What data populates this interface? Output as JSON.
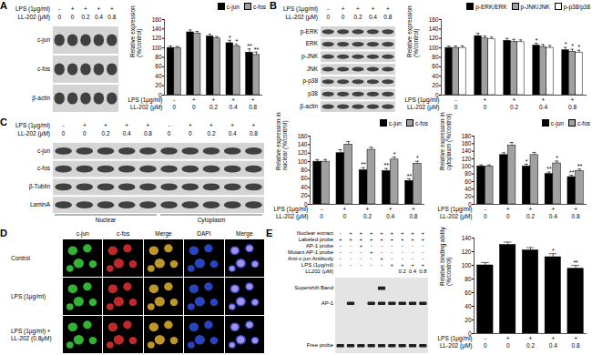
{
  "panels": [
    {
      "label": "A",
      "blot": {
        "treatments": [
          {
            "label": "LPS (1μg/ml)",
            "values": [
              "-",
              "+",
              "+",
              "+",
              "+"
            ]
          },
          {
            "label": "LL-202 (μM)",
            "values": [
              "0",
              "0",
              "0.2",
              "0.4",
              "0.8"
            ]
          }
        ],
        "rows": [
          "c-jun",
          "c-fos",
          "β-actin"
        ]
      }
    },
    {
      "label": "B",
      "blot": {
        "treatments": [
          {
            "label": "LPS (1μg/ml)",
            "values": [
              "-",
              "+",
              "+",
              "+",
              "+"
            ]
          },
          {
            "label": "LL-202 (μM)",
            "values": [
              "0",
              "0",
              "0.2",
              "0.4",
              "0.8"
            ]
          }
        ],
        "rows": [
          "p-ERK",
          "ERK",
          "p-JNK",
          "JNK",
          "p-p38",
          "p38",
          "β-actin"
        ]
      }
    },
    {
      "label": "C",
      "blot": {
        "treatments": [
          {
            "label": "LPS (1μg/ml)",
            "values": [
              "-",
              "+",
              "+",
              "+",
              "+",
              "-",
              "+",
              "+",
              "+",
              "+"
            ]
          },
          {
            "label": "LL-202 (μM)",
            "values": [
              "0",
              "0",
              "0.2",
              "0.4",
              "0.8",
              "0",
              "0",
              "0.2",
              "0.4",
              "0.8"
            ]
          }
        ],
        "rows": [
          "c-jun",
          "c-fos",
          "β-Tublin",
          "LaminA"
        ],
        "groups": [
          "Nuclear",
          "Cytoplasm"
        ]
      }
    },
    {
      "label": "D",
      "images": {
        "columns": [
          "c-jun",
          "c-fos",
          "Merge",
          "DAPI",
          "Merge"
        ],
        "rows": [
          "Control",
          "LPS (1μg/ml)",
          "LPS (1μg/ml) + LL-202 (0.8μM)"
        ]
      }
    },
    {
      "label": "E",
      "gel": {
        "treatments": [
          {
            "label": "Nuclear extract",
            "values": [
              "-",
              "+",
              "+",
              "+",
              "+",
              "+",
              "+",
              "+",
              "+"
            ]
          },
          {
            "label": "Labeled probe",
            "values": [
              "+",
              "+",
              "+",
              "+",
              "+",
              "+",
              "+",
              "+",
              "+"
            ]
          },
          {
            "label": "AP-1 probe",
            "values": [
              "-",
              "-",
              "+",
              "-",
              "-",
              "-",
              "-",
              "-",
              "-"
            ]
          },
          {
            "label": "Mutant AP-1 probe",
            "values": [
              "-",
              "-",
              "-",
              "+",
              "-",
              "-",
              "-",
              "-",
              "-"
            ]
          },
          {
            "label": "Anti-c-jun Antibody",
            "values": [
              "-",
              "-",
              "-",
              "-",
              "+",
              "-",
              "-",
              "-",
              "-"
            ]
          },
          {
            "label": "LPS (1μg/ml)",
            "values": [
              "-",
              "-",
              "-",
              "-",
              "-",
              "+",
              "+",
              "+",
              "+"
            ]
          },
          {
            "label": "LL202 (μM)",
            "values": [
              null,
              null,
              null,
              null,
              null,
              null,
              "0.2",
              "0.4",
              "0.8"
            ]
          }
        ],
        "bands": [
          "Supershift Band",
          "AP-1",
          "Free probe"
        ]
      }
    }
  ],
  "chart_data": [
    {
      "type": "bar",
      "ylabel": "Relative expression (%/control)",
      "categories": [
        null,
        null,
        null,
        null,
        null
      ],
      "treatments": [
        {
          "label": "LPS (1μg/ml)",
          "values": [
            "-",
            "+",
            "+",
            "+",
            "+"
          ]
        },
        {
          "label": "LL-202 (μM)",
          "values": [
            "0",
            "0",
            "0.2",
            "0.4",
            "0.8"
          ]
        }
      ],
      "series": [
        {
          "name": "c-jun",
          "color": "#000000",
          "values": [
            100,
            133,
            124,
            110,
            90
          ],
          "errors": [
            4,
            5,
            5,
            6,
            8
          ],
          "significance": [
            null,
            null,
            null,
            "*",
            "**"
          ]
        },
        {
          "name": "c-fos",
          "color": "#a0a0a0",
          "values": [
            100,
            130,
            120,
            103,
            85
          ],
          "errors": [
            3,
            5,
            4,
            5,
            6
          ],
          "significance": [
            null,
            null,
            null,
            "*",
            "**"
          ]
        }
      ],
      "ylim": [
        0,
        160
      ],
      "yticks": [
        0,
        20,
        40,
        60,
        80,
        100,
        120,
        140,
        160
      ],
      "legend": "top-right"
    },
    {
      "type": "bar",
      "ylabel": "Relative expression (%/control)",
      "categories": [
        null,
        null,
        null,
        null,
        null
      ],
      "treatments": [
        {
          "label": "LPS (1μg/ml)",
          "values": [
            "-",
            "+",
            "+",
            "+",
            "+"
          ]
        },
        {
          "label": "LL-202 (μM)",
          "values": [
            "0",
            "0",
            "0.2",
            "0.4",
            "0.8"
          ]
        }
      ],
      "series": [
        {
          "name": "p-ERK/ERK",
          "color": "#000000",
          "values": [
            100,
            125,
            115,
            105,
            95
          ],
          "errors": [
            4,
            6,
            5,
            5,
            6
          ],
          "significance": [
            null,
            null,
            null,
            "*",
            "*"
          ]
        },
        {
          "name": "p-JNK/JNK",
          "color": "#a0a0a0",
          "values": [
            100,
            120,
            113,
            102,
            92
          ],
          "errors": [
            4,
            5,
            5,
            5,
            5
          ],
          "significance": [
            null,
            null,
            null,
            null,
            "*"
          ]
        },
        {
          "name": "p-p38/p38",
          "color": "#ffffff",
          "values": [
            100,
            118,
            112,
            100,
            90
          ],
          "errors": [
            4,
            5,
            5,
            5,
            5
          ],
          "significance": [
            null,
            null,
            null,
            null,
            "*"
          ]
        }
      ],
      "ylim": [
        0,
        160
      ],
      "yticks": [
        0,
        20,
        40,
        60,
        80,
        100,
        120,
        140,
        160
      ],
      "legend": "top-right"
    },
    {
      "type": "bar",
      "ylabel": "Relative expression in nuclear (%/control)",
      "categories": [
        null,
        null,
        null,
        null,
        null
      ],
      "treatments": [
        {
          "label": "LPS (1μg/ml)",
          "values": [
            "-",
            "+",
            "+",
            "+",
            "+"
          ]
        },
        {
          "label": "LL-202 (μM)",
          "values": [
            "0",
            "0",
            "0.2",
            "0.4",
            "0.8"
          ]
        }
      ],
      "series": [
        {
          "name": "c-jun",
          "color": "#000000",
          "values": [
            100,
            120,
            80,
            78,
            55
          ],
          "errors": [
            5,
            8,
            6,
            6,
            5
          ],
          "significance": [
            null,
            null,
            "**",
            "**",
            "**"
          ]
        },
        {
          "name": "c-fos",
          "color": "#a0a0a0",
          "values": [
            100,
            140,
            128,
            105,
            95
          ],
          "errors": [
            5,
            7,
            6,
            6,
            6
          ],
          "significance": [
            null,
            null,
            null,
            "*",
            "*"
          ]
        }
      ],
      "ylim": [
        0,
        160
      ],
      "yticks": [
        0,
        20,
        40,
        60,
        80,
        100,
        120,
        140,
        160
      ],
      "legend": "top-right"
    },
    {
      "type": "bar",
      "ylabel": "Relative expression in cytoplasm (%/control)",
      "categories": [
        null,
        null,
        null,
        null,
        null
      ],
      "treatments": [
        {
          "label": "LPS (1μg/ml)",
          "values": [
            "-",
            "+",
            "+",
            "+",
            "+"
          ]
        },
        {
          "label": "LL-202 (μM)",
          "values": [
            "0",
            "0",
            "0.2",
            "0.4",
            "0.8"
          ]
        }
      ],
      "series": [
        {
          "name": "c-jun",
          "color": "#000000",
          "values": [
            100,
            130,
            100,
            80,
            72
          ],
          "errors": [
            4,
            6,
            6,
            5,
            5
          ],
          "significance": [
            null,
            null,
            "*",
            "**",
            "**"
          ]
        },
        {
          "name": "c-fos",
          "color": "#a0a0a0",
          "values": [
            100,
            155,
            130,
            108,
            88
          ],
          "errors": [
            4,
            8,
            7,
            6,
            5
          ],
          "significance": [
            null,
            null,
            null,
            "*",
            "**"
          ]
        }
      ],
      "ylim": [
        0,
        180
      ],
      "yticks": [
        0,
        20,
        40,
        60,
        80,
        100,
        120,
        140,
        160,
        180
      ],
      "legend": "top-right"
    },
    {
      "type": "bar",
      "ylabel": "Relative binding ability (%/control)",
      "categories": [
        null,
        null,
        null,
        null,
        null
      ],
      "treatments": [
        {
          "label": "LPS (1μg/ml)",
          "values": [
            "-",
            "+",
            "+",
            "+",
            "+"
          ]
        },
        {
          "label": "LL-202 (μM)",
          "values": [
            "0",
            "0",
            "0.2",
            "0.4",
            "0.8"
          ]
        }
      ],
      "color": "#000000",
      "values": [
        100,
        130,
        122,
        112,
        95
      ],
      "errors": [
        4,
        4,
        4,
        5,
        5
      ],
      "significance": [
        null,
        null,
        null,
        "*",
        "**"
      ],
      "ylim": [
        0,
        140
      ],
      "yticks": [
        0,
        20,
        40,
        60,
        80,
        100,
        120,
        140
      ]
    }
  ]
}
